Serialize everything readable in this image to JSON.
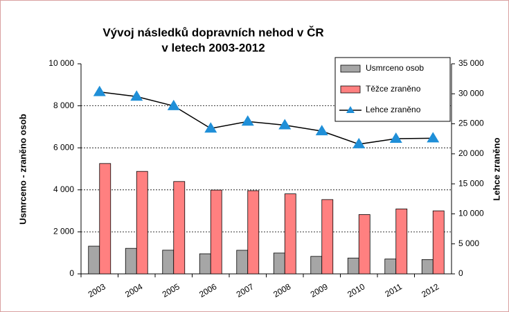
{
  "chart_data": {
    "type": "bar-line",
    "title": "Vývoj následků dopravních nehod v ČR",
    "subtitle": "v letech 2003-2012",
    "ylabel": "Usmrceno - zraněno osob",
    "y2label": "Lehce zraněno",
    "categories": [
      "2003",
      "2004",
      "2005",
      "2006",
      "2007",
      "2008",
      "2009",
      "2010",
      "2011",
      "2012"
    ],
    "series": [
      {
        "name": "Usmrceno osob",
        "color": "#a6a6a6",
        "kind": "bar",
        "values": [
          1319,
          1215,
          1127,
          956,
          1123,
          992,
          832,
          753,
          707,
          681
        ]
      },
      {
        "name": "Těžce zraněno",
        "color": "#ff8080",
        "kind": "bar",
        "values": [
          5253,
          4878,
          4396,
          3990,
          3960,
          3809,
          3536,
          2823,
          3092,
          3000
        ]
      },
      {
        "name": "Lehce zraněno",
        "color": "#1f8fd8",
        "kind": "line",
        "axis": "y2",
        "values": [
          30312,
          29543,
          27974,
          24231,
          25382,
          24776,
          23777,
          21610,
          22519,
          22590
        ]
      }
    ],
    "ylim": [
      0,
      10000
    ],
    "yticks": [
      0,
      {
        "value": 2000,
        "label": "2 000"
      },
      {
        "value": 4000,
        "label": "4 000"
      },
      {
        "value": 6000,
        "label": "6 000"
      },
      {
        "value": 8000,
        "label": "8 000"
      },
      {
        "value": 10000,
        "label": "10 000"
      }
    ],
    "y2lim": [
      0,
      35000
    ],
    "y2ticks": [
      0,
      {
        "value": 5000,
        "label": "5 000"
      },
      {
        "value": 10000,
        "label": "10 000"
      },
      {
        "value": 15000,
        "label": "15 000"
      },
      {
        "value": 20000,
        "label": "20 000"
      },
      {
        "value": 25000,
        "label": "25 000"
      },
      {
        "value": 30000,
        "label": "30 000"
      },
      {
        "value": 35000,
        "label": "35 000"
      }
    ],
    "grid": true,
    "legend": "top-right"
  }
}
